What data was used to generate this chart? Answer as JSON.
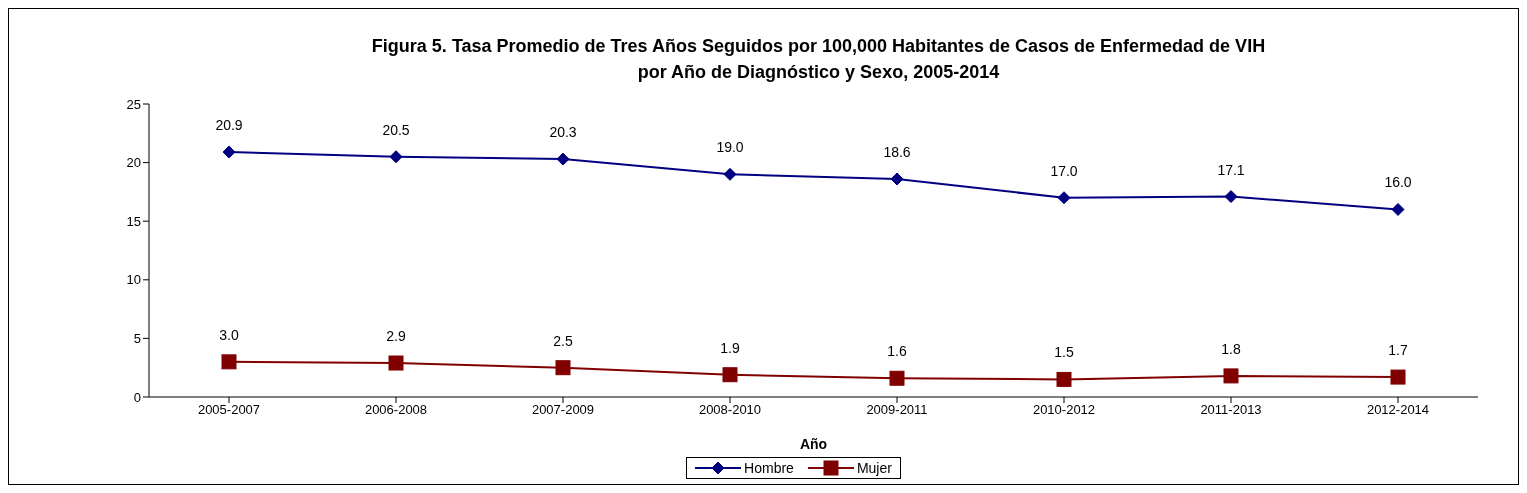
{
  "chart_data": {
    "type": "line",
    "title": "Figura 5. Tasa Promedio de Tres Años Seguidos por 100,000 Habitantes de Casos de Enfermedad de VIH\npor Año de Diagnóstico y Sexo, 2005-2014",
    "xlabel": "Año",
    "categories": [
      "2005-2007",
      "2006-2008",
      "2007-2009",
      "2008-2010",
      "2009-2011",
      "2010-2012",
      "2011-2013",
      "2012-2014"
    ],
    "series": [
      {
        "name": "Hombre",
        "color": "#000080",
        "marker": "diamond",
        "values": [
          20.9,
          20.5,
          20.3,
          19.0,
          18.6,
          17.0,
          17.1,
          16.0
        ],
        "value_labels": [
          "20.9",
          "20.5",
          "20.3",
          "19.0",
          "18.6",
          "17.0",
          "17.1",
          "16.0"
        ]
      },
      {
        "name": "Mujer",
        "color": "#800000",
        "marker": "square",
        "values": [
          3.0,
          2.9,
          2.5,
          1.9,
          1.6,
          1.5,
          1.8,
          1.7
        ],
        "value_labels": [
          "3.0",
          "2.9",
          "2.5",
          "1.9",
          "1.6",
          "1.5",
          "1.8",
          "1.7"
        ]
      }
    ],
    "ylim": [
      0,
      25
    ],
    "yticks": [
      0,
      5,
      10,
      15,
      20,
      25
    ],
    "grid": false,
    "legend": "bottom"
  }
}
